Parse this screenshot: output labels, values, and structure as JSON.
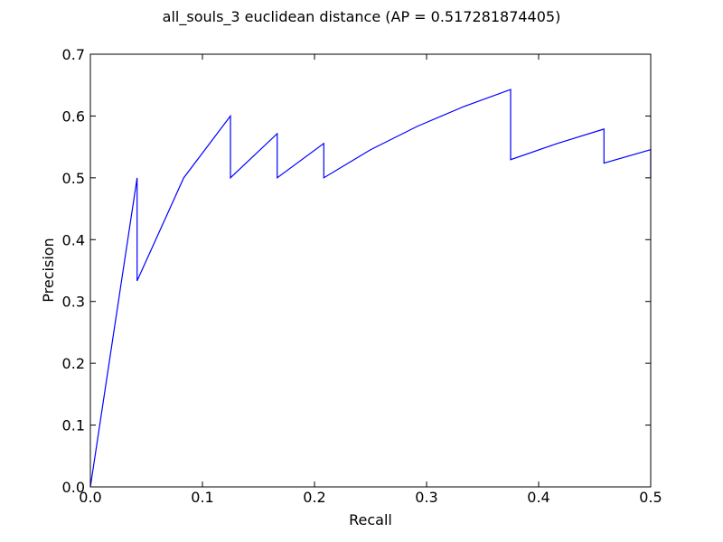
{
  "chart_data": {
    "type": "line",
    "title": "all_souls_3 euclidean distance  (AP = 0.517281874405)",
    "xlabel": "Recall",
    "ylabel": "Precision",
    "xlim": [
      0.0,
      0.5
    ],
    "ylim": [
      0.0,
      0.7
    ],
    "xticks": [
      0.0,
      0.1,
      0.2,
      0.3,
      0.4,
      0.5
    ],
    "yticks": [
      0.0,
      0.1,
      0.2,
      0.3,
      0.4,
      0.5,
      0.6,
      0.7
    ],
    "xtick_labels": [
      "0.0",
      "0.1",
      "0.2",
      "0.3",
      "0.4",
      "0.5"
    ],
    "ytick_labels": [
      "0.0",
      "0.1",
      "0.2",
      "0.3",
      "0.4",
      "0.5",
      "0.6",
      "0.7"
    ],
    "grid": false,
    "line_color": "#0000ff",
    "series": [
      {
        "x": [
          0.0,
          0.0417,
          0.0417,
          0.0833,
          0.125,
          0.125,
          0.1667,
          0.1667,
          0.2083,
          0.2083,
          0.25,
          0.2917,
          0.3333,
          0.375,
          0.375,
          0.4167,
          0.4583,
          0.4583,
          0.5,
          0.5
        ],
        "y": [
          0.0,
          0.5,
          0.3333,
          0.5,
          0.6,
          0.5,
          0.5714,
          0.5,
          0.5556,
          0.5,
          0.5455,
          0.5833,
          0.6154,
          0.6429,
          0.5294,
          0.5556,
          0.5789,
          0.5238,
          0.5455,
          0.5
        ]
      }
    ]
  }
}
